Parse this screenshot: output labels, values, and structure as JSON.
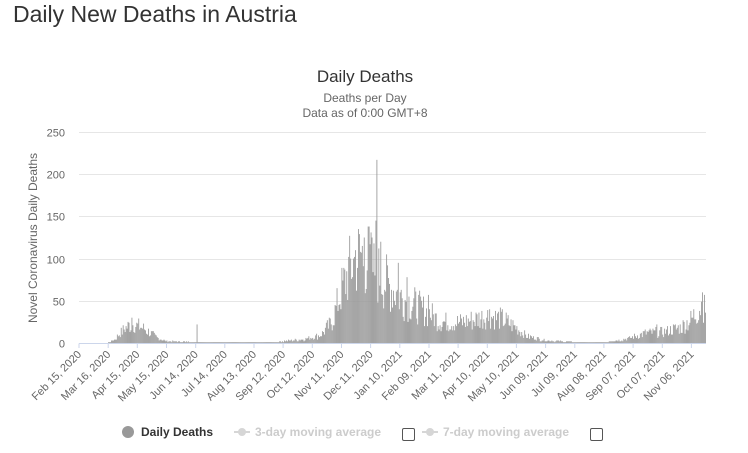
{
  "page": {
    "title": "Daily New Deaths in Austria"
  },
  "chart_data": {
    "type": "bar",
    "title": "Daily Deaths",
    "subtitle": "Deaths per Day",
    "note": "Data as of 0:00 GMT+8",
    "ylabel": "Novel Coronavirus Daily Deaths",
    "xlabel": "",
    "ylim": [
      0,
      250
    ],
    "yticks": [
      0,
      50,
      100,
      150,
      200,
      250
    ],
    "x_start": "2020-02-15",
    "x_end": "2021-11-20",
    "xticks": [
      "Feb 15, 2020",
      "Mar 16, 2020",
      "Apr 15, 2020",
      "May 15, 2020",
      "Jun 14, 2020",
      "Jul 14, 2020",
      "Aug 13, 2020",
      "Sep 12, 2020",
      "Oct 12, 2020",
      "Nov 11, 2020",
      "Dec 11, 2020",
      "Jan 10, 2021",
      "Feb 09, 2021",
      "Mar 11, 2021",
      "Apr 10, 2021",
      "May 10, 2021",
      "Jun 09, 2021",
      "Jul 09, 2021",
      "Aug 08, 2021",
      "Sep 07, 2021",
      "Oct 07, 2021",
      "Nov 06, 2021"
    ],
    "bar_color": "#999999",
    "grid": true,
    "legend_position": "bottom",
    "series": [
      {
        "name": "Daily Deaths",
        "anchors_note": "values interpolated between these estimated points",
        "anchors": [
          [
            "2020-02-15",
            0
          ],
          [
            "2020-03-15",
            0
          ],
          [
            "2020-03-22",
            4
          ],
          [
            "2020-03-30",
            14
          ],
          [
            "2020-04-05",
            20
          ],
          [
            "2020-04-10",
            22
          ],
          [
            "2020-04-20",
            18
          ],
          [
            "2020-04-28",
            12
          ],
          [
            "2020-05-05",
            6
          ],
          [
            "2020-05-15",
            2
          ],
          [
            "2020-06-10",
            1
          ],
          [
            "2020-09-01",
            1
          ],
          [
            "2020-10-01",
            4
          ],
          [
            "2020-10-20",
            9
          ],
          [
            "2020-11-01",
            25
          ],
          [
            "2020-11-10",
            60
          ],
          [
            "2020-11-20",
            90
          ],
          [
            "2020-11-30",
            105
          ],
          [
            "2020-12-06",
            100
          ],
          [
            "2020-12-15",
            85
          ],
          [
            "2020-12-20",
            80
          ],
          [
            "2020-12-28",
            70
          ],
          [
            "2021-01-10",
            55
          ],
          [
            "2021-01-25",
            45
          ],
          [
            "2021-02-09",
            35
          ],
          [
            "2021-02-20",
            25
          ],
          [
            "2021-03-11",
            24
          ],
          [
            "2021-03-25",
            27
          ],
          [
            "2021-04-10",
            32
          ],
          [
            "2021-04-25",
            28
          ],
          [
            "2021-05-10",
            18
          ],
          [
            "2021-05-20",
            8
          ],
          [
            "2021-06-09",
            3
          ],
          [
            "2021-07-09",
            1
          ],
          [
            "2021-08-08",
            1
          ],
          [
            "2021-09-01",
            5
          ],
          [
            "2021-09-20",
            12
          ],
          [
            "2021-10-07",
            13
          ],
          [
            "2021-10-25",
            18
          ],
          [
            "2021-11-06",
            28
          ],
          [
            "2021-11-14",
            42
          ],
          [
            "2021-11-20",
            50
          ]
        ],
        "spikes": [
          [
            "2020-12-17",
            217
          ],
          [
            "2020-12-09",
            138
          ],
          [
            "2020-12-16",
            145
          ],
          [
            "2020-12-04",
            125
          ],
          [
            "2020-12-12",
            125
          ],
          [
            "2020-11-25",
            110
          ],
          [
            "2021-01-08",
            95
          ],
          [
            "2020-12-21",
            120
          ],
          [
            "2021-01-17",
            78
          ],
          [
            "2020-06-15",
            22
          ],
          [
            "2021-11-17",
            60
          ],
          [
            "2021-11-19",
            57
          ],
          [
            "2020-04-09",
            30
          ],
          [
            "2021-04-12",
            40
          ],
          [
            "2021-02-08",
            57
          ],
          [
            "2021-10-01",
            22
          ]
        ]
      }
    ]
  },
  "legend": {
    "daily_deaths": "Daily Deaths",
    "avg3": "3-day moving average",
    "avg7": "7-day moving average"
  }
}
